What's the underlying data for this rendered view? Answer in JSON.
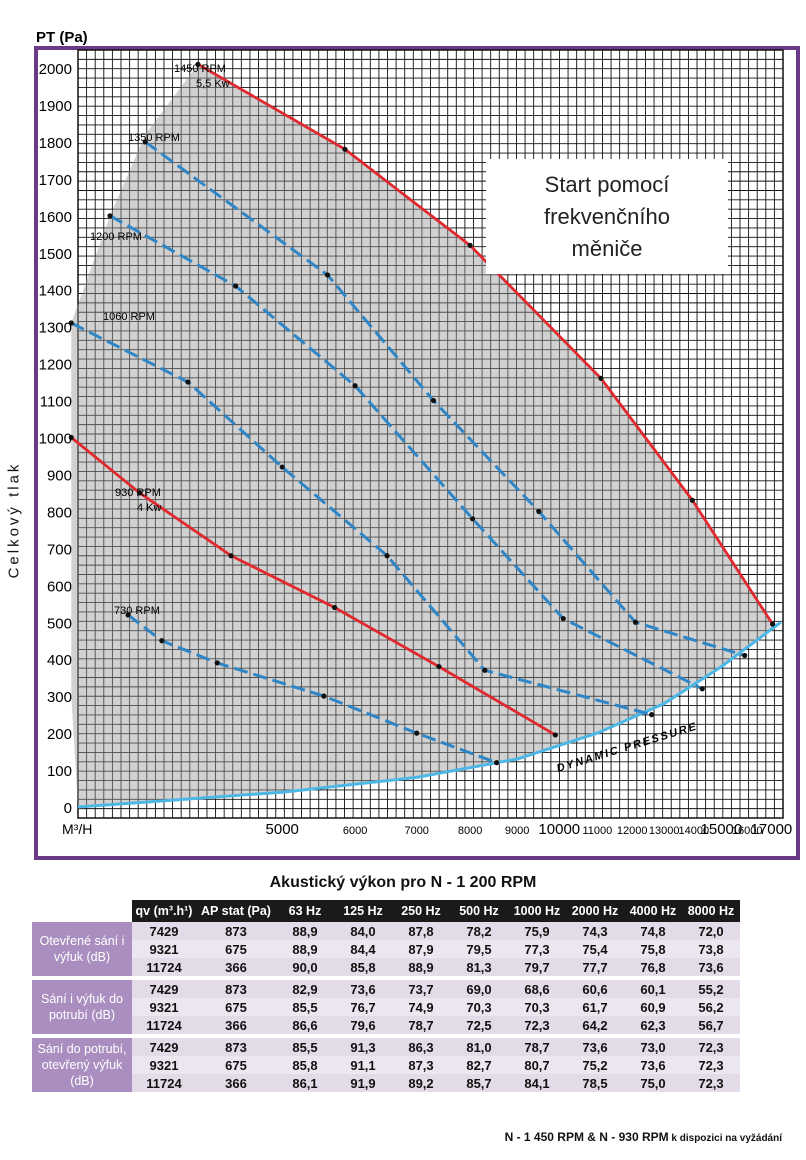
{
  "chart_data": {
    "type": "line",
    "title": "PT (Pa)",
    "ylabel": "Celkový tlak",
    "xlabel": "M³/H",
    "ylim": [
      0,
      2000
    ],
    "xlim": [
      3000,
      17500
    ],
    "x_scale": "log",
    "y_ticks": [
      2000,
      1900,
      1800,
      1700,
      1600,
      1500,
      1400,
      1300,
      1200,
      1100,
      1000,
      900,
      800,
      700,
      600,
      500,
      400,
      300,
      200,
      100,
      0
    ],
    "x_ticks_major": [
      5000,
      10000,
      15000,
      17000
    ],
    "x_ticks_minor": [
      6000,
      7000,
      8000,
      9000,
      11000,
      12000,
      13000,
      14000,
      16000
    ],
    "annotation": "Start pomocí\nfrekvenčního\nměniče",
    "dynamic_pressure_label": "DYNAMIC PRESSURE",
    "series": [
      {
        "name": "1450 RPM",
        "sub": "5,5 Kw",
        "style": "solid",
        "color": "#e0292e",
        "x": [
          4050,
          5850,
          8000,
          11100,
          13950,
          17050
        ],
        "y": [
          2010,
          1780,
          1520,
          1160,
          830,
          495
        ]
      },
      {
        "name": "1350 RPM",
        "style": "dashed",
        "color": "#2f86c7",
        "x": [
          3550,
          5600,
          7300,
          9500,
          12100,
          15900
        ],
        "y": [
          1800,
          1440,
          1100,
          800,
          500,
          410
        ]
      },
      {
        "name": "1200 RPM",
        "style": "dashed",
        "color": "#2f86c7",
        "x": [
          3250,
          4450,
          6000,
          8050,
          10100,
          14300
        ],
        "y": [
          1600,
          1410,
          1140,
          780,
          510,
          320
        ]
      },
      {
        "name": "1060 RPM",
        "style": "dashed",
        "color": "#2f86c7",
        "x": [
          2950,
          3950,
          5000,
          6500,
          8300,
          12600
        ],
        "y": [
          1310,
          1150,
          920,
          680,
          370,
          250
        ]
      },
      {
        "name": "930 RPM",
        "sub": "4 Kw",
        "style": "solid",
        "color": "#e0292e",
        "x": [
          2950,
          3500,
          4400,
          5700,
          7400,
          9900
        ],
        "y": [
          1000,
          850,
          680,
          540,
          380,
          195
        ]
      },
      {
        "name": "730 RPM",
        "style": "dashed",
        "color": "#2f86c7",
        "x": [
          3400,
          3700,
          4250,
          5550,
          7000,
          8550
        ],
        "y": [
          520,
          450,
          390,
          300,
          200,
          120
        ]
      }
    ],
    "dynamic_pressure_curve": {
      "color": "#4db7e6",
      "x": [
        3000,
        5000,
        7000,
        9000,
        11000,
        13000,
        15000,
        17400
      ],
      "y": [
        0,
        40,
        80,
        130,
        200,
        280,
        380,
        500
      ]
    }
  },
  "acoustic": {
    "title_prefix": "Akustický výkon pro ",
    "title_model": "N - 1 200 RPM",
    "headers": [
      "qv (m³.h¹)",
      "AP stat (Pa)",
      "63 Hz",
      "125 Hz",
      "250 Hz",
      "500 Hz",
      "1000 Hz",
      "2000 Hz",
      "4000 Hz",
      "8000 Hz"
    ],
    "groups": [
      {
        "label": "Otevřené sání i výfuk (dB)",
        "rows": [
          [
            "7429",
            "873",
            "88,9",
            "84,0",
            "87,8",
            "78,2",
            "75,9",
            "74,3",
            "74,8",
            "72,0"
          ],
          [
            "9321",
            "675",
            "88,9",
            "84,4",
            "87,9",
            "79,5",
            "77,3",
            "75,4",
            "75,8",
            "73,8"
          ],
          [
            "11724",
            "366",
            "90,0",
            "85,8",
            "88,9",
            "81,3",
            "79,7",
            "77,7",
            "76,8",
            "73,6"
          ]
        ]
      },
      {
        "label": "Sání i výfuk do potrubí (dB)",
        "rows": [
          [
            "7429",
            "873",
            "82,9",
            "73,6",
            "73,7",
            "69,0",
            "68,6",
            "60,6",
            "60,1",
            "55,2"
          ],
          [
            "9321",
            "675",
            "85,5",
            "76,7",
            "74,9",
            "70,3",
            "70,3",
            "61,7",
            "60,9",
            "56,2"
          ],
          [
            "11724",
            "366",
            "86,6",
            "79,6",
            "78,7",
            "72,5",
            "72,3",
            "64,2",
            "62,3",
            "56,7"
          ]
        ]
      },
      {
        "label": "Sání do potrubí, otevřený výfuk (dB)",
        "rows": [
          [
            "7429",
            "873",
            "85,5",
            "91,3",
            "86,3",
            "81,0",
            "78,7",
            "73,6",
            "73,0",
            "72,3"
          ],
          [
            "9321",
            "675",
            "85,8",
            "91,1",
            "87,3",
            "82,7",
            "80,7",
            "75,2",
            "73,6",
            "72,3"
          ],
          [
            "11724",
            "366",
            "86,1",
            "91,9",
            "89,2",
            "85,7",
            "84,1",
            "78,5",
            "75,0",
            "72,3"
          ]
        ]
      }
    ],
    "footnote_main": "N - 1 450 RPM & N - 930 RPM",
    "footnote_small": " k dispozici na vyžádání"
  }
}
